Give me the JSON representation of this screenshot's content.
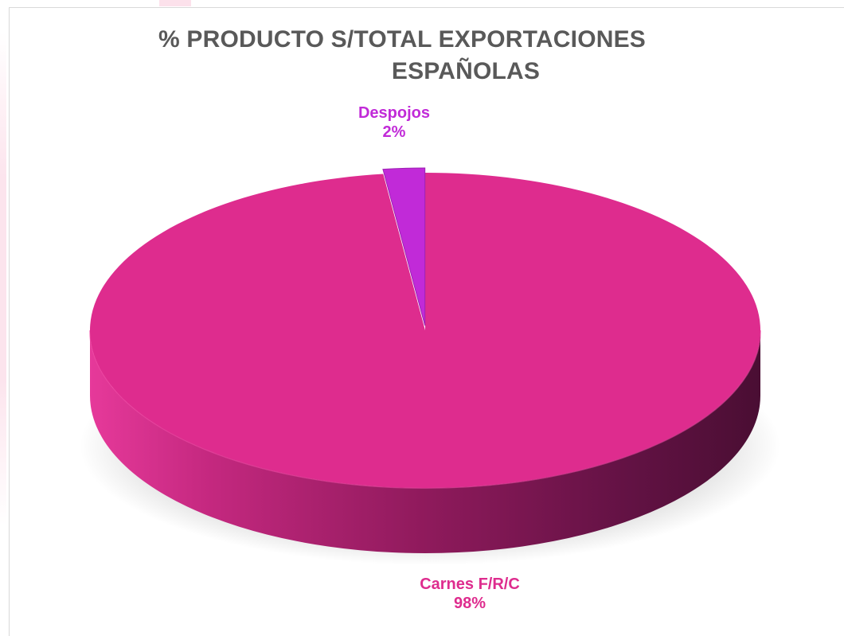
{
  "chart_data": {
    "type": "pie",
    "title_line1": "% PRODUCTO  S/TOTAL EXPORTACIONES",
    "title_line2": "ESPAÑOLAS",
    "slices": [
      {
        "label": "Carnes F/R/C",
        "value": 98,
        "value_label": "98%",
        "color": "#de2c8e"
      },
      {
        "label": "Despojos",
        "value": 2,
        "value_label": "2%",
        "color": "#c12ad8"
      }
    ],
    "style": "3d",
    "legend": "none",
    "title_color": "#595959"
  }
}
